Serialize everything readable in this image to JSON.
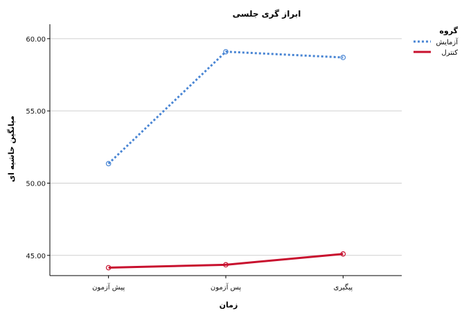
{
  "chart_data": {
    "type": "line",
    "title": "ابراز گری جلسی",
    "xlabel": "زمان",
    "ylabel": "میانگین حاشیه ای",
    "categories": [
      "پیش آزمون",
      "پس آزمون",
      "پیگیری"
    ],
    "y_ticks": [
      "45.00",
      "50.00",
      "55.00",
      "60.00"
    ],
    "ylim": [
      43.6,
      61.0
    ],
    "grid": true,
    "legend": {
      "title": "گروه",
      "placement": "top-right"
    },
    "series": [
      {
        "name": "آزمایش",
        "values": [
          51.35,
          59.1,
          58.7
        ],
        "color": "#4a86d4",
        "style": "dashed"
      },
      {
        "name": "کنترل",
        "values": [
          44.15,
          44.35,
          45.1
        ],
        "color": "#c8102e",
        "style": "solid"
      }
    ]
  }
}
